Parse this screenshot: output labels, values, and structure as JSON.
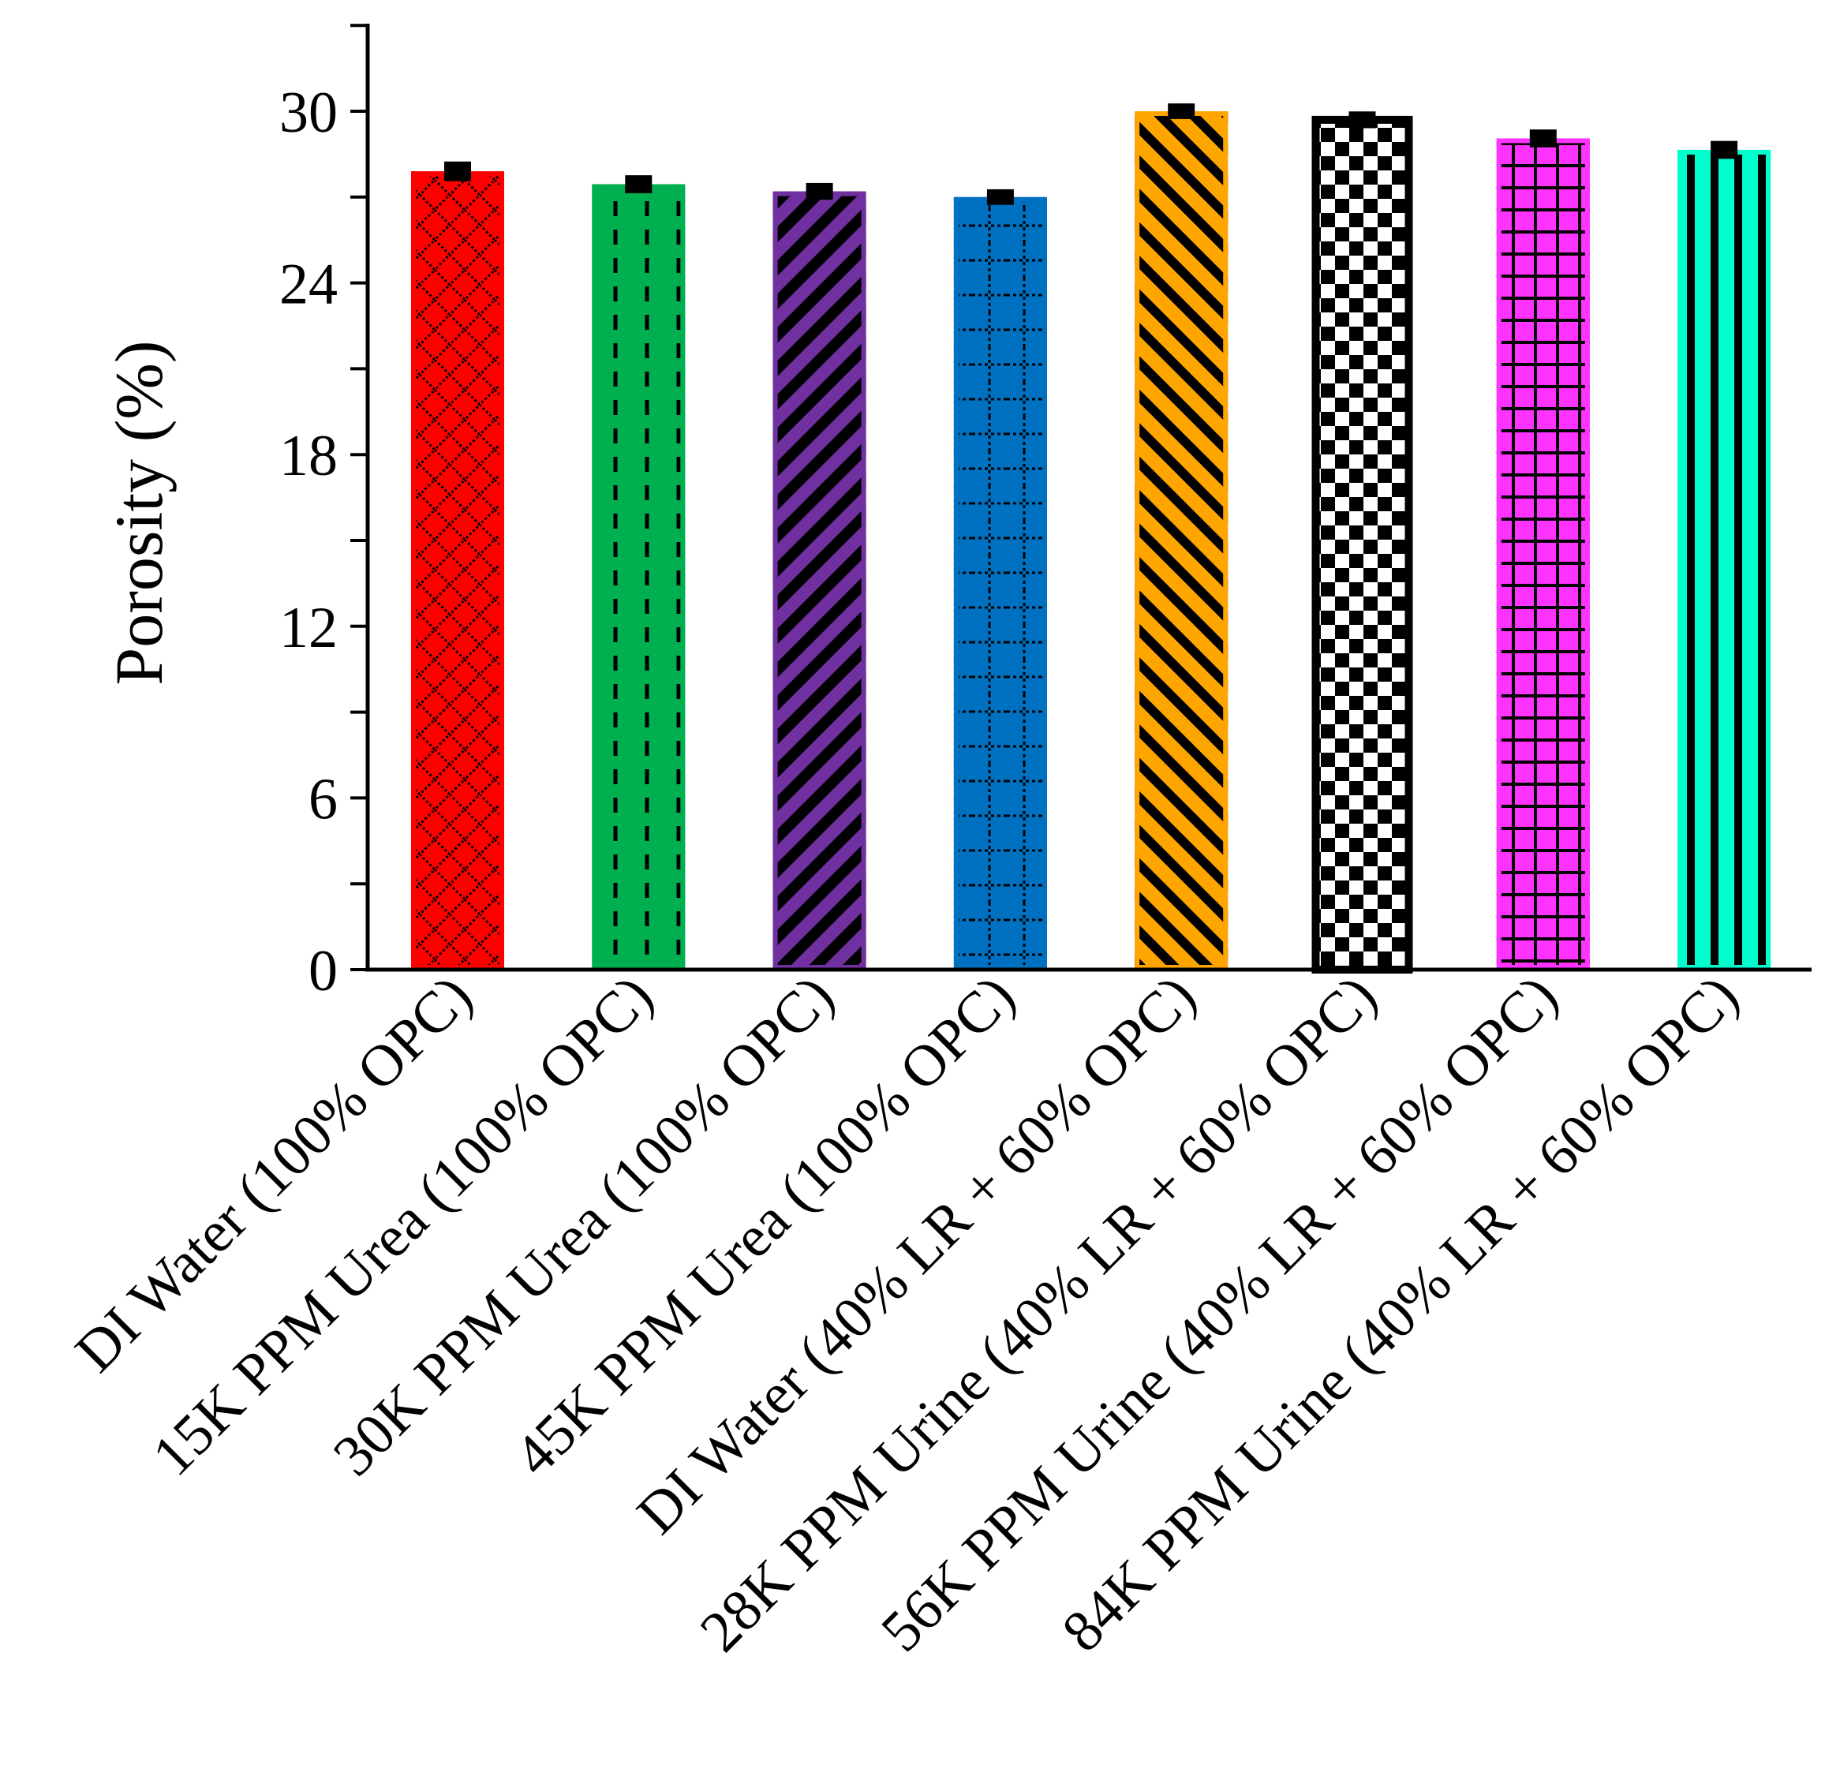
{
  "chart_data": {
    "type": "bar",
    "ylabel": "Porosity (%)",
    "xlabel": "",
    "ylim": [
      0,
      33
    ],
    "yticks": [
      0,
      6,
      12,
      18,
      24,
      30
    ],
    "grid": false,
    "categories": [
      "DI Water (100% OPC)",
      "15K PPM Urea (100% OPC)",
      "30K PPM Urea (100% OPC)",
      "45K PPM Urea (100% OPC)",
      "DI Water (40% LR + 60% OPC)",
      "28K PPM Urine (40% LR + 60% OPC)",
      "56K PPM Urine (40% LR + 60% OPC)",
      "84K PPM Urine (40% LR + 60% OPC)"
    ],
    "values": [
      27.9,
      27.45,
      27.2,
      27.0,
      30.0,
      29.7,
      29.05,
      28.65
    ],
    "errors": [
      0.15,
      0.12,
      0.1,
      0.08,
      0.08,
      0.1,
      0.12,
      0.12
    ],
    "colors": [
      "#ff0000",
      "#00b050",
      "#7030a0",
      "#0070c0",
      "#ffa500",
      "#ffffff",
      "#ff33ff",
      "#00ffcc"
    ],
    "patterns": [
      "diamond-lattice",
      "dashed-vertical",
      "wide-diagonal-up",
      "dotted-grid",
      "diagonal-down",
      "checkerboard",
      "grid-cross",
      "vertical-stripes"
    ]
  }
}
